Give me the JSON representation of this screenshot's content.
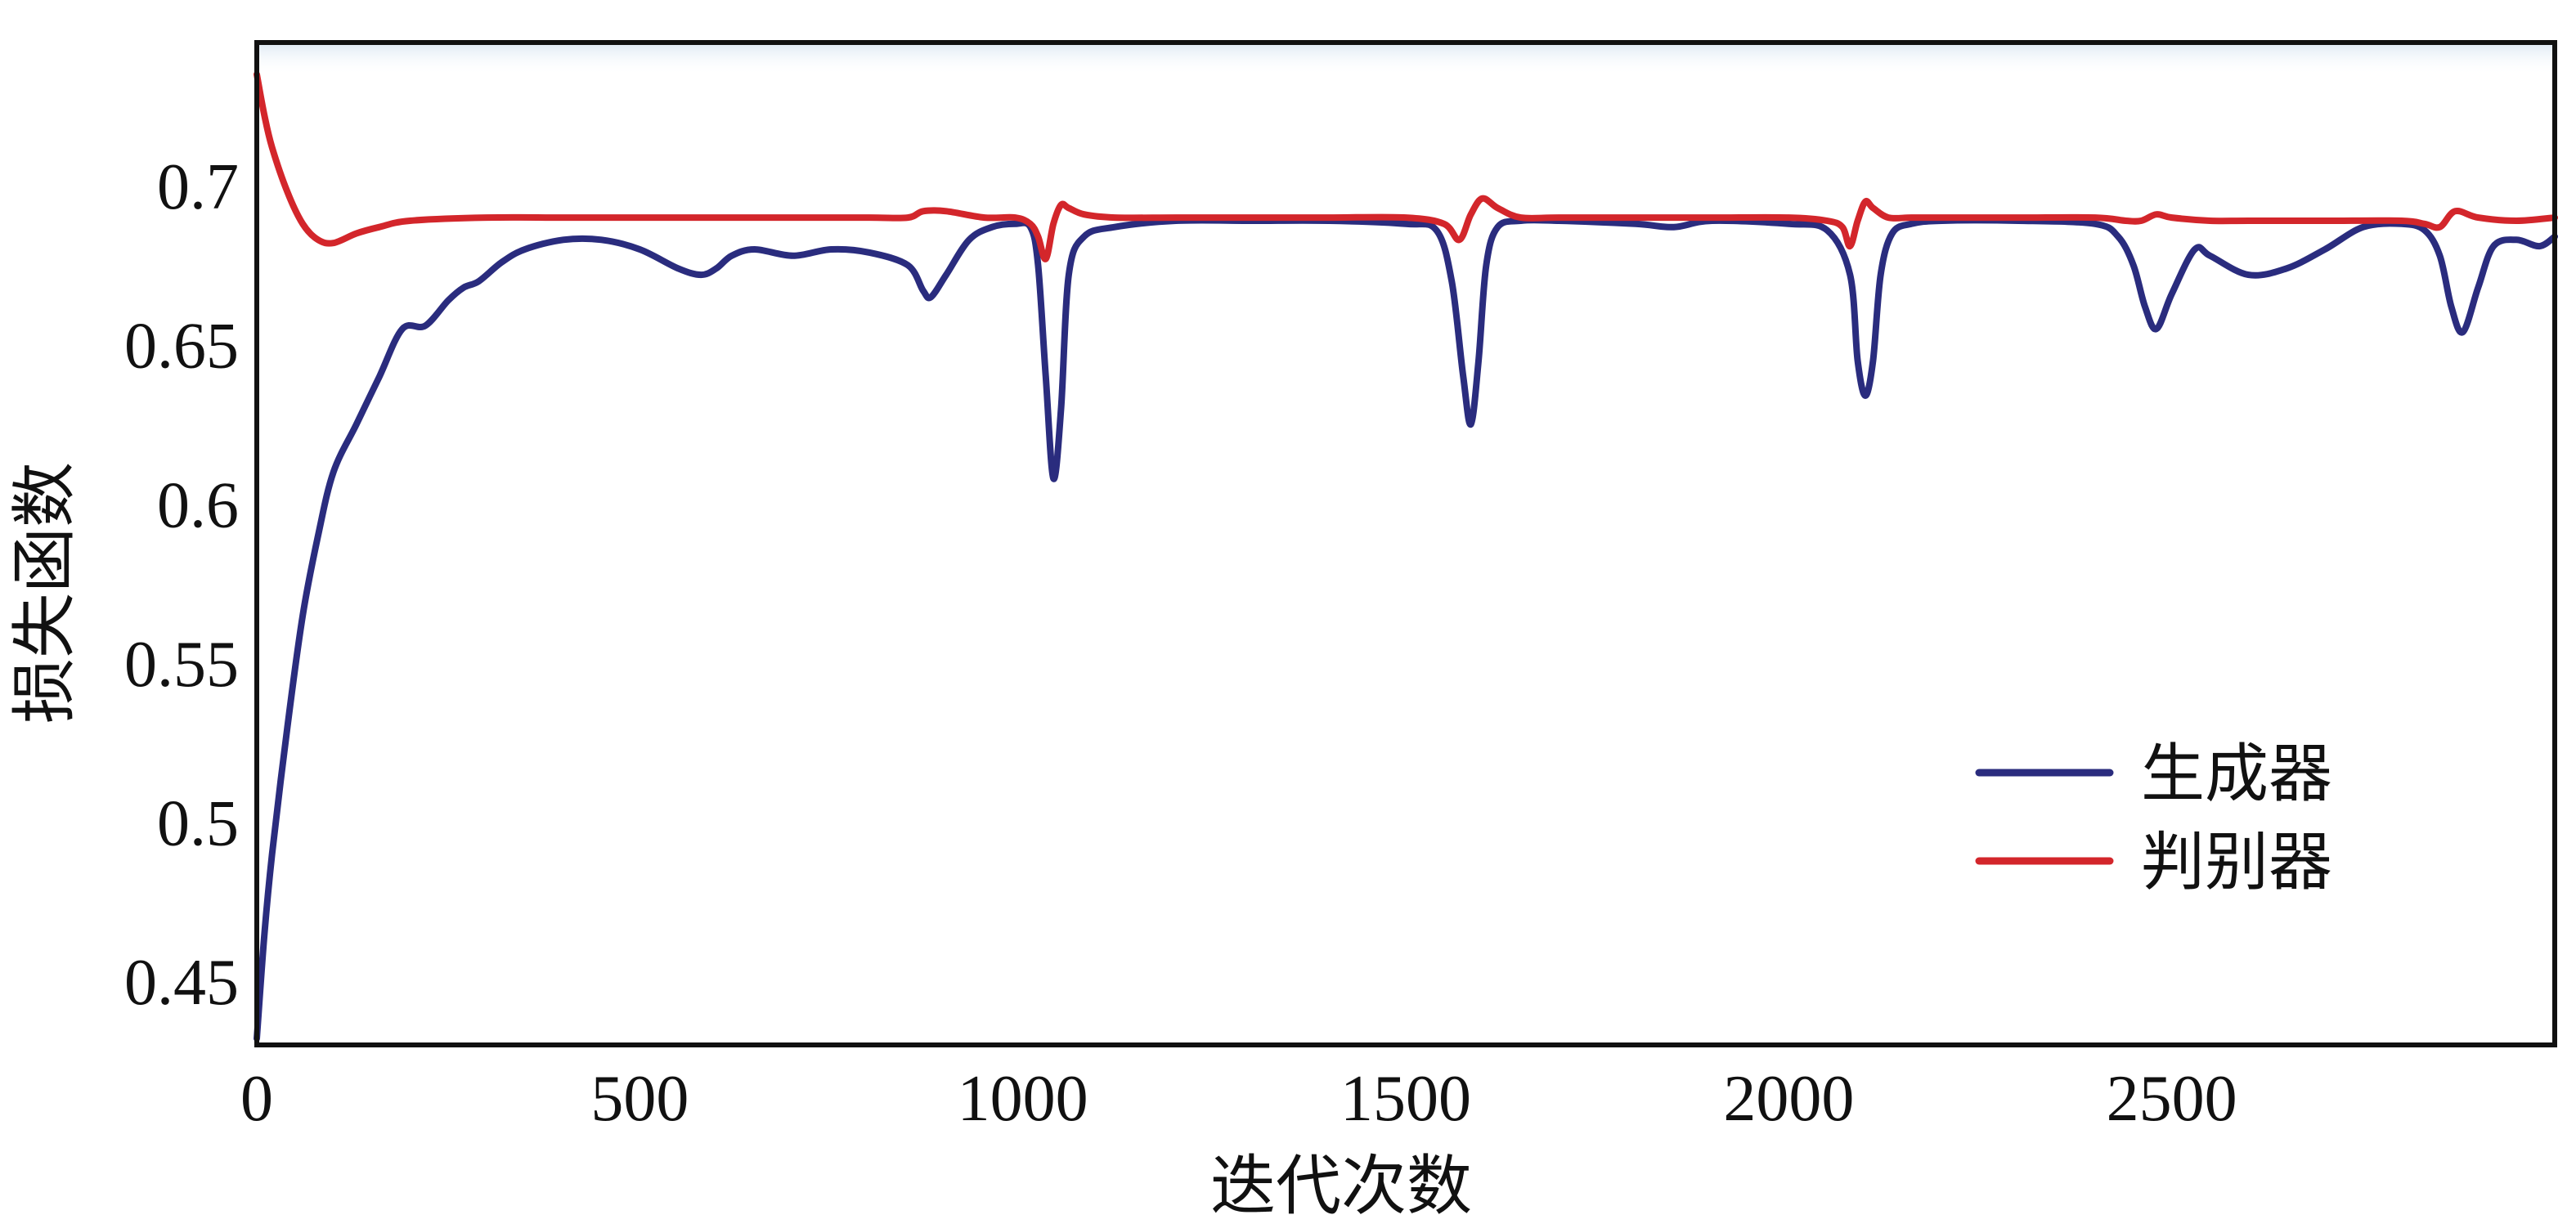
{
  "chart_data": {
    "type": "line",
    "title": "",
    "xlabel": "迭代次数",
    "ylabel": "损失函数",
    "xlim": [
      0,
      3000
    ],
    "ylim": [
      0.43,
      0.745
    ],
    "xticks": [
      0,
      500,
      1000,
      1500,
      2000,
      2500
    ],
    "xtick_labels": [
      "0",
      "500",
      "1000",
      "1500",
      "2000",
      "2500"
    ],
    "yticks": [
      0.45,
      0.5,
      0.55,
      0.6,
      0.65,
      0.7
    ],
    "ytick_labels": [
      "0.45",
      "0.5",
      "0.55",
      "0.6",
      "0.65",
      "0.7"
    ],
    "grid": false,
    "legend_position": "right",
    "series": [
      {
        "name": "生成器",
        "color": "#2a2c7e",
        "x": [
          0,
          10,
          20,
          40,
          60,
          80,
          100,
          130,
          160,
          190,
          220,
          250,
          270,
          290,
          320,
          350,
          400,
          450,
          500,
          550,
          580,
          600,
          620,
          650,
          700,
          750,
          800,
          850,
          870,
          880,
          900,
          930,
          960,
          990,
          1010,
          1020,
          1030,
          1040,
          1050,
          1060,
          1080,
          1120,
          1200,
          1300,
          1400,
          1500,
          1540,
          1560,
          1575,
          1585,
          1595,
          1605,
          1620,
          1650,
          1700,
          1800,
          1850,
          1900,
          2000,
          2050,
          2080,
          2090,
          2100,
          2110,
          2120,
          2135,
          2160,
          2200,
          2300,
          2400,
          2430,
          2450,
          2465,
          2480,
          2500,
          2530,
          2550,
          2600,
          2650,
          2700,
          2750,
          2800,
          2830,
          2850,
          2865,
          2880,
          2900,
          2920,
          2950,
          2980,
          3000
        ],
        "values": [
          0.432,
          0.465,
          0.49,
          0.53,
          0.565,
          0.59,
          0.61,
          0.625,
          0.64,
          0.655,
          0.656,
          0.664,
          0.668,
          0.67,
          0.676,
          0.68,
          0.683,
          0.683,
          0.68,
          0.674,
          0.672,
          0.674,
          0.678,
          0.68,
          0.678,
          0.68,
          0.679,
          0.675,
          0.667,
          0.665,
          0.672,
          0.683,
          0.687,
          0.688,
          0.687,
          0.675,
          0.64,
          0.608,
          0.63,
          0.672,
          0.684,
          0.687,
          0.689,
          0.689,
          0.689,
          0.688,
          0.686,
          0.67,
          0.64,
          0.625,
          0.645,
          0.675,
          0.687,
          0.689,
          0.689,
          0.688,
          0.687,
          0.689,
          0.688,
          0.686,
          0.672,
          0.645,
          0.634,
          0.645,
          0.672,
          0.685,
          0.688,
          0.689,
          0.689,
          0.688,
          0.684,
          0.675,
          0.662,
          0.655,
          0.666,
          0.68,
          0.678,
          0.672,
          0.674,
          0.68,
          0.687,
          0.688,
          0.686,
          0.678,
          0.662,
          0.654,
          0.668,
          0.681,
          0.683,
          0.681,
          0.684
        ]
      },
      {
        "name": "判别器",
        "color": "#d3262b",
        "x": [
          0,
          10,
          20,
          40,
          60,
          80,
          100,
          130,
          160,
          200,
          300,
          400,
          500,
          600,
          700,
          800,
          850,
          870,
          900,
          950,
          990,
          1010,
          1020,
          1030,
          1040,
          1050,
          1060,
          1080,
          1120,
          1200,
          1300,
          1400,
          1500,
          1550,
          1570,
          1585,
          1600,
          1620,
          1650,
          1700,
          1800,
          1900,
          2000,
          2050,
          2070,
          2080,
          2090,
          2100,
          2110,
          2130,
          2160,
          2200,
          2300,
          2400,
          2440,
          2460,
          2480,
          2500,
          2550,
          2600,
          2700,
          2800,
          2830,
          2850,
          2870,
          2900,
          2950,
          3000
        ],
        "values": [
          0.735,
          0.722,
          0.712,
          0.698,
          0.688,
          0.683,
          0.682,
          0.685,
          0.687,
          0.689,
          0.69,
          0.69,
          0.69,
          0.69,
          0.69,
          0.69,
          0.69,
          0.692,
          0.692,
          0.69,
          0.69,
          0.688,
          0.684,
          0.677,
          0.688,
          0.694,
          0.693,
          0.691,
          0.69,
          0.69,
          0.69,
          0.69,
          0.69,
          0.688,
          0.683,
          0.691,
          0.696,
          0.693,
          0.69,
          0.69,
          0.69,
          0.69,
          0.69,
          0.689,
          0.687,
          0.681,
          0.689,
          0.695,
          0.693,
          0.69,
          0.69,
          0.69,
          0.69,
          0.69,
          0.689,
          0.689,
          0.691,
          0.69,
          0.689,
          0.689,
          0.689,
          0.689,
          0.688,
          0.687,
          0.692,
          0.69,
          0.689,
          0.69
        ]
      }
    ]
  }
}
